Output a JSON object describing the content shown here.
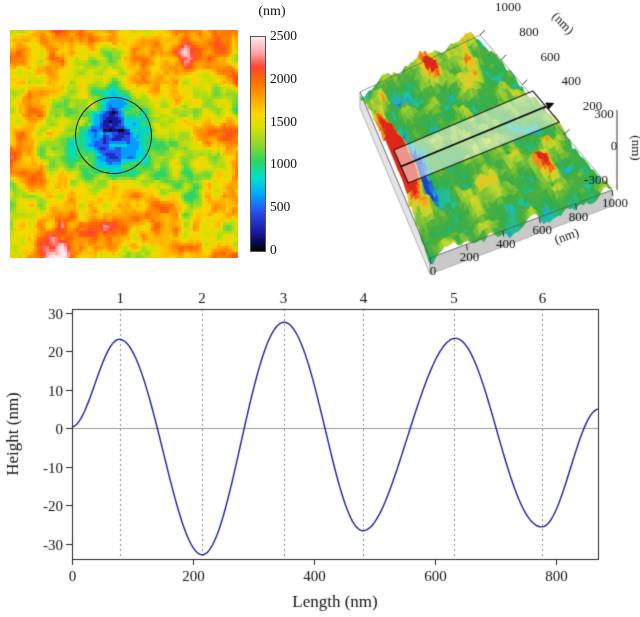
{
  "figure": {
    "background": "#ffffff",
    "description": "AFM topography figure: 2D height map with colorbar, 3D surface view with profile band, and extracted height profile"
  },
  "chart_data": [
    {
      "type": "heatmap",
      "name": "afm-topography-map",
      "base_height_nm": 1600,
      "colorbar": {
        "label": "(nm)",
        "min": 0,
        "max": 2500,
        "ticks": [
          2500,
          2000,
          1500,
          1000,
          500,
          0
        ],
        "stops": [
          [
            0,
            "#000000"
          ],
          [
            0.08,
            "#16169a"
          ],
          [
            0.18,
            "#2b4bee"
          ],
          [
            0.26,
            "#00a2ff"
          ],
          [
            0.34,
            "#00e0cf"
          ],
          [
            0.42,
            "#2fd55e"
          ],
          [
            0.5,
            "#8fd92b"
          ],
          [
            0.58,
            "#d9e000"
          ],
          [
            0.64,
            "#ffd500"
          ],
          [
            0.72,
            "#ff9f00"
          ],
          [
            0.8,
            "#ff6a00"
          ],
          [
            0.86,
            "#ff4431"
          ],
          [
            0.92,
            "#ff9d9d"
          ],
          [
            1,
            "#ffe9ee"
          ]
        ]
      },
      "feature": {
        "shape": "circle-annotation",
        "center_frac": [
          0.45,
          0.46
        ],
        "radius_frac": 0.165,
        "depression_depth_nm": 900
      }
    },
    {
      "type": "surface3d",
      "name": "afm-3d-surface",
      "x_axis": {
        "label": "(nm)",
        "ticks": [
          0,
          200,
          400,
          600,
          800,
          1000
        ]
      },
      "y_axis": {
        "label": "(nm)",
        "ticks": [
          1000,
          800,
          600,
          400,
          200
        ]
      },
      "z_axis": {
        "label": "(nm)",
        "ticks": [
          300,
          0,
          -300
        ]
      },
      "profile_band": {
        "present": true,
        "direction": "left-to-right"
      }
    },
    {
      "type": "line",
      "name": "height-profile",
      "xlabel": "Length (nm)",
      "ylabel": "Height (nm)",
      "xlim": [
        0,
        870
      ],
      "ylim": [
        -34,
        31
      ],
      "x_ticks": [
        0,
        200,
        400,
        600,
        800
      ],
      "y_ticks": [
        -30,
        -20,
        -10,
        0,
        10,
        20,
        30
      ],
      "grid": "dotted-vertical-at-markers",
      "top_markers": {
        "labels": [
          "1",
          "2",
          "3",
          "4",
          "5",
          "6"
        ],
        "x": [
          80,
          215,
          350,
          482,
          632,
          778
        ]
      },
      "series": [
        {
          "name": "height profile",
          "color": "#1b1b9e",
          "interp": "cosine",
          "keypoints_x": [
            0,
            80,
            215,
            350,
            482,
            632,
            778,
            870
          ],
          "keypoints_y": [
            0,
            23.5,
            -32,
            28,
            -26.5,
            23.5,
            -26,
            5
          ]
        }
      ]
    }
  ]
}
